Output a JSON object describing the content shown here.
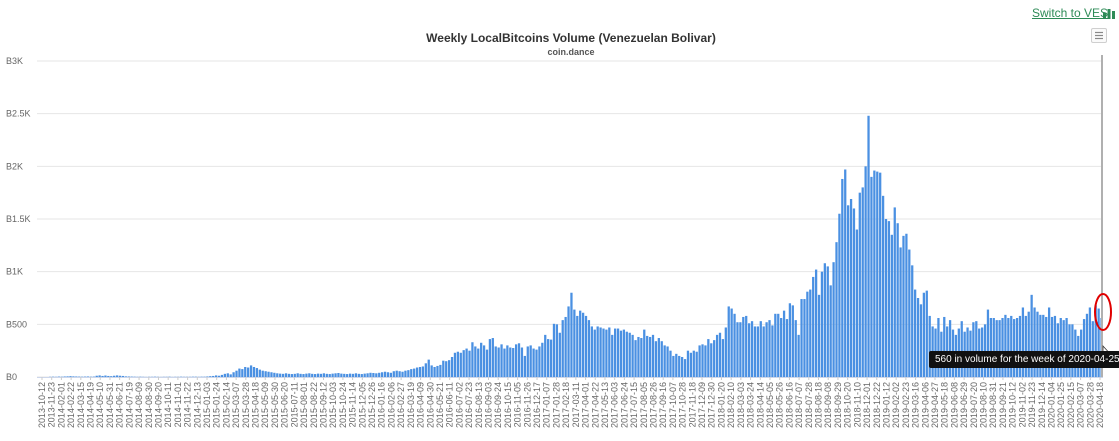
{
  "header": {
    "switch_label": "Switch to VES",
    "menu_icon": "hamburger-menu-icon",
    "switch_icon": "bar-chart-icon"
  },
  "colors": {
    "bar": "#4a90e2",
    "link": "#2e8b57",
    "highlight_circle": "#e00000"
  },
  "tooltip": {
    "text": "560 in volume for the week of 2020-04-25"
  },
  "chart_data": {
    "type": "bar",
    "title": "Weekly LocalBitcoins Volume (Venezuelan Bolivar)",
    "subtitle": "coin.dance",
    "xlabel": "",
    "ylabel": "",
    "ylim": [
      0,
      3000
    ],
    "y_ticks": [
      {
        "value": 0,
        "label": "B0"
      },
      {
        "value": 500,
        "label": "B500"
      },
      {
        "value": 1000,
        "label": "B1K"
      },
      {
        "value": 1500,
        "label": "B1.5K"
      },
      {
        "value": 2000,
        "label": "B2K"
      },
      {
        "value": 2500,
        "label": "B2.5K"
      },
      {
        "value": 3000,
        "label": "B3K"
      }
    ],
    "grid": true,
    "start_week": "2013-10-12",
    "x_tick_labels": [
      "2013-10-12",
      "2013-11-23",
      "2014-02-01",
      "2014-02-22",
      "2014-03-15",
      "2014-04-19",
      "2014-05-10",
      "2014-05-31",
      "2014-06-21",
      "2014-07-19",
      "2014-08-09",
      "2014-08-30",
      "2014-09-20",
      "2014-10-11",
      "2014-11-01",
      "2014-11-22",
      "2014-12-13",
      "2015-01-03",
      "2015-01-24",
      "2015-02-14",
      "2015-03-07",
      "2015-03-28",
      "2015-04-18",
      "2015-05-09",
      "2015-05-30",
      "2015-06-20",
      "2015-07-11",
      "2015-08-01",
      "2015-08-22",
      "2015-09-12",
      "2015-10-03",
      "2015-10-24",
      "2015-11-14",
      "2015-12-05",
      "2015-12-26",
      "2016-01-16",
      "2016-02-06",
      "2016-02-27",
      "2016-03-19",
      "2016-04-09",
      "2016-04-30",
      "2016-05-21",
      "2016-06-11",
      "2016-07-02",
      "2016-07-23",
      "2016-08-13",
      "2016-09-03",
      "2016-09-24",
      "2016-10-15",
      "2016-11-05",
      "2016-11-26",
      "2016-12-17",
      "2017-01-07",
      "2017-01-28",
      "2017-02-18",
      "2017-03-11",
      "2017-04-01",
      "2017-04-22",
      "2017-05-13",
      "2017-06-03",
      "2017-06-24",
      "2017-07-15",
      "2017-08-05",
      "2017-08-26",
      "2017-09-16",
      "2017-10-07",
      "2017-10-28",
      "2017-11-18",
      "2017-12-09",
      "2017-12-30",
      "2018-01-20",
      "2018-02-10",
      "2018-03-03",
      "2018-03-24",
      "2018-04-14",
      "2018-05-05",
      "2018-05-26",
      "2018-06-16",
      "2018-07-07",
      "2018-07-28",
      "2018-08-18",
      "2018-09-08",
      "2018-09-29",
      "2018-10-20",
      "2018-11-10",
      "2018-12-01",
      "2018-12-22",
      "2019-01-12",
      "2019-02-02",
      "2019-02-23",
      "2019-03-16",
      "2019-04-06",
      "2019-04-27",
      "2019-05-18",
      "2019-06-08",
      "2019-06-29",
      "2019-07-20",
      "2019-08-10",
      "2019-08-31",
      "2019-09-21",
      "2019-10-12",
      "2019-11-02",
      "2019-11-23",
      "2019-12-14",
      "2020-01-04",
      "2020-01-25",
      "2020-02-15",
      "2020-03-07",
      "2020-03-28",
      "2020-04-18"
    ],
    "values": [
      0,
      0,
      0,
      0,
      2,
      3,
      2,
      4,
      3,
      5,
      6,
      8,
      6,
      5,
      4,
      3,
      4,
      5,
      3,
      4,
      12,
      15,
      10,
      14,
      10,
      8,
      12,
      15,
      12,
      10,
      6,
      5,
      4,
      3,
      2,
      3,
      2,
      1,
      2,
      2,
      3,
      2,
      1,
      2,
      2,
      3,
      1,
      2,
      2,
      3,
      2,
      2,
      2,
      3,
      3,
      2,
      3,
      3,
      5,
      8,
      10,
      15,
      12,
      20,
      30,
      35,
      25,
      45,
      60,
      80,
      75,
      95,
      90,
      110,
      95,
      85,
      70,
      60,
      55,
      50,
      45,
      40,
      35,
      32,
      30,
      35,
      30,
      28,
      30,
      35,
      30,
      28,
      32,
      35,
      30,
      28,
      32,
      30,
      35,
      30,
      28,
      32,
      35,
      38,
      32,
      30,
      28,
      32,
      30,
      35,
      30,
      28,
      32,
      35,
      40,
      38,
      35,
      40,
      45,
      50,
      45,
      40,
      55,
      60,
      55,
      50,
      60,
      65,
      75,
      80,
      90,
      95,
      100,
      130,
      165,
      110,
      95,
      105,
      115,
      155,
      150,
      160,
      190,
      230,
      240,
      230,
      255,
      270,
      250,
      330,
      290,
      270,
      325,
      300,
      260,
      360,
      370,
      290,
      280,
      310,
      270,
      300,
      280,
      275,
      310,
      320,
      280,
      200,
      290,
      300,
      270,
      260,
      290,
      325,
      400,
      360,
      355,
      505,
      500,
      420,
      540,
      570,
      670,
      800,
      640,
      580,
      630,
      610,
      580,
      540,
      480,
      450,
      480,
      470,
      460,
      450,
      470,
      400,
      460,
      460,
      440,
      450,
      430,
      420,
      400,
      350,
      380,
      370,
      450,
      390,
      380,
      400,
      340,
      370,
      340,
      300,
      290,
      250,
      200,
      220,
      200,
      190,
      170,
      250,
      230,
      250,
      240,
      300,
      310,
      300,
      360,
      320,
      350,
      400,
      420,
      360,
      470,
      670,
      650,
      600,
      520,
      520,
      570,
      580,
      510,
      530,
      480,
      480,
      530,
      480,
      520,
      540,
      490,
      600,
      600,
      560,
      630,
      550,
      700,
      680,
      540,
      400,
      740,
      740,
      810,
      830,
      950,
      1020,
      780,
      1000,
      1080,
      1050,
      870,
      1090,
      1280,
      1550,
      1880,
      1970,
      1630,
      1690,
      1600,
      1400,
      1750,
      1800,
      2000,
      2480,
      1900,
      1960,
      1950,
      1940,
      1720,
      1500,
      1480,
      1350,
      1610,
      1460,
      1230,
      1340,
      1360,
      1210,
      1060,
      830,
      750,
      690,
      800,
      820,
      580,
      480,
      460,
      560,
      430,
      570,
      480,
      540,
      450,
      400,
      460,
      530,
      430,
      470,
      440,
      520,
      530,
      460,
      470,
      500,
      640,
      560,
      560,
      540,
      540,
      560,
      590,
      560,
      580,
      550,
      560,
      580,
      660,
      580,
      620,
      780,
      660,
      620,
      590,
      590,
      570,
      660,
      570,
      580,
      510,
      560,
      540,
      560,
      500,
      500,
      450,
      390,
      450,
      550,
      600,
      660,
      530,
      680,
      650,
      560
    ]
  }
}
